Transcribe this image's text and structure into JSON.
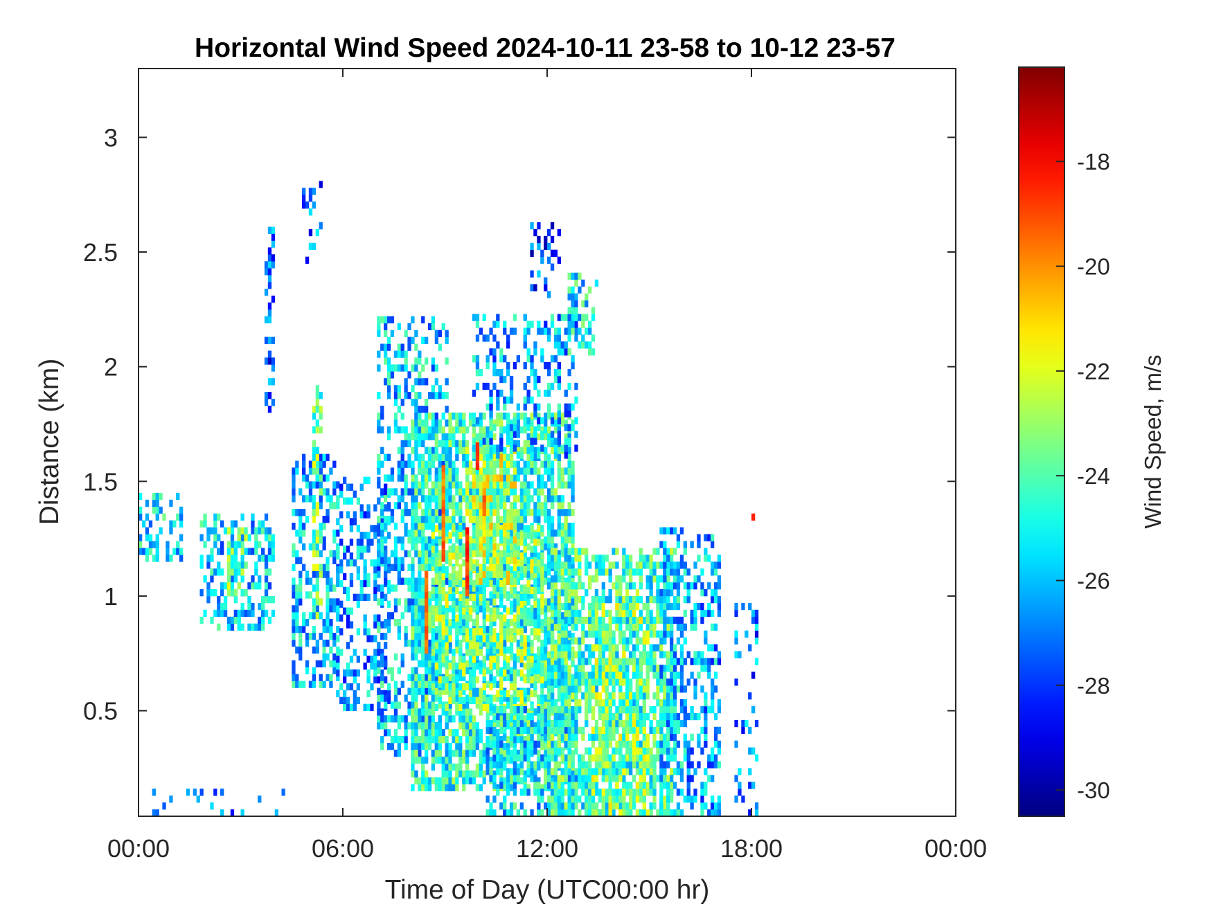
{
  "chart_data": {
    "type": "heatmap",
    "title": "Horizontal Wind Speed 2024-10-11 23-58 to 10-12 23-57",
    "xlabel": "Time of Day (UTC00:00 hr)",
    "ylabel": "Distance (km)",
    "colorbar_label": "Wind Speed, m/s",
    "x_ticks": [
      "00:00",
      "06:00",
      "12:00",
      "18:00",
      "00:00"
    ],
    "x_tick_hours": [
      0,
      6,
      12,
      18,
      24
    ],
    "xlim_hours": [
      0,
      24
    ],
    "y_ticks": [
      "0.5",
      "1",
      "1.5",
      "2",
      "2.5",
      "3"
    ],
    "y_tick_values": [
      0.5,
      1,
      1.5,
      2,
      2.5,
      3
    ],
    "ylim_km": [
      0.04,
      3.3
    ],
    "colorbar_ticks": [
      "-18",
      "-20",
      "-22",
      "-24",
      "-26",
      "-28",
      "-30"
    ],
    "colorbar_tick_values": [
      -18,
      -20,
      -22,
      -24,
      -26,
      -28,
      -30
    ],
    "clim": [
      -30.5,
      -16.2
    ],
    "colormap": "jet",
    "grid": false,
    "cell_hours": 0.1,
    "cell_km": 0.03,
    "regions": [
      {
        "t0": 0.0,
        "t1": 1.3,
        "d0": 1.15,
        "d1": 1.45,
        "v": -25.3,
        "fill": 0.45
      },
      {
        "t0": 1.8,
        "t1": 4.0,
        "d0": 0.85,
        "d1": 1.35,
        "v": -25.8,
        "fill": 0.45
      },
      {
        "t0": 2.6,
        "t1": 3.2,
        "d0": 1.0,
        "d1": 1.3,
        "v": -23.5,
        "fill": 0.6
      },
      {
        "t0": 3.7,
        "t1": 4.0,
        "d0": 1.8,
        "d1": 2.6,
        "v": -27.5,
        "fill": 0.35
      },
      {
        "t0": 4.5,
        "t1": 5.8,
        "d0": 0.6,
        "d1": 1.6,
        "v": -26.0,
        "fill": 0.5
      },
      {
        "t0": 5.1,
        "t1": 5.3,
        "d0": 0.9,
        "d1": 1.9,
        "v": -23.8,
        "fill": 0.5
      },
      {
        "t0": 4.8,
        "t1": 5.3,
        "d0": 2.45,
        "d1": 2.8,
        "v": -27.2,
        "fill": 0.25
      },
      {
        "t0": 5.8,
        "t1": 7.3,
        "d0": 0.5,
        "d1": 1.5,
        "v": -26.5,
        "fill": 0.4
      },
      {
        "t0": 7.0,
        "t1": 9.0,
        "d0": 0.3,
        "d1": 2.2,
        "v": -25.8,
        "fill": 0.45
      },
      {
        "t0": 8.0,
        "t1": 12.7,
        "d0": 0.15,
        "d1": 1.8,
        "v": -24.6,
        "fill": 0.72
      },
      {
        "t0": 8.6,
        "t1": 11.8,
        "d0": 0.5,
        "d1": 1.3,
        "v": -23.4,
        "fill": 0.5
      },
      {
        "t0": 9.6,
        "t1": 11.0,
        "d0": 1.05,
        "d1": 1.65,
        "v": -22.6,
        "fill": 0.6
      },
      {
        "t0": 9.8,
        "t1": 12.8,
        "d0": 1.6,
        "d1": 2.2,
        "v": -26.2,
        "fill": 0.35
      },
      {
        "t0": 10.2,
        "t1": 12.8,
        "d0": 0.04,
        "d1": 0.5,
        "v": -25.5,
        "fill": 0.5
      },
      {
        "t0": 12.0,
        "t1": 15.6,
        "d0": 0.04,
        "d1": 1.2,
        "v": -24.4,
        "fill": 0.68
      },
      {
        "t0": 13.3,
        "t1": 14.9,
        "d0": 0.04,
        "d1": 0.95,
        "v": -23.3,
        "fill": 0.45
      },
      {
        "t0": 15.3,
        "t1": 16.0,
        "d0": 0.04,
        "d1": 1.3,
        "v": -25.8,
        "fill": 0.55
      },
      {
        "t0": 16.1,
        "t1": 17.1,
        "d0": 0.04,
        "d1": 1.25,
        "v": -26.3,
        "fill": 0.4
      },
      {
        "t0": 17.5,
        "t1": 18.2,
        "d0": 0.04,
        "d1": 0.95,
        "v": -27.0,
        "fill": 0.2
      },
      {
        "t0": 12.6,
        "t1": 13.4,
        "d0": 2.05,
        "d1": 2.4,
        "v": -25.3,
        "fill": 0.45
      },
      {
        "t0": 11.5,
        "t1": 12.3,
        "d0": 2.3,
        "d1": 2.6,
        "v": -27.8,
        "fill": 0.25
      },
      {
        "t0": 0.0,
        "t1": 4.5,
        "d0": 0.04,
        "d1": 0.15,
        "v": -26.5,
        "fill": 0.1
      }
    ],
    "streaks": [
      {
        "t": 8.4,
        "d0": 0.75,
        "d1": 1.1,
        "v": -19.2
      },
      {
        "t": 8.9,
        "d0": 1.15,
        "d1": 1.55,
        "v": -19.6
      },
      {
        "t": 9.6,
        "d0": 1.0,
        "d1": 1.3,
        "v": -18.6
      },
      {
        "t": 9.9,
        "d0": 1.55,
        "d1": 1.66,
        "v": -18.7
      },
      {
        "t": 10.1,
        "d0": 1.35,
        "d1": 1.45,
        "v": -19.5
      },
      {
        "t": 18.0,
        "d0": 1.33,
        "d1": 1.36,
        "v": -18.5
      }
    ]
  }
}
